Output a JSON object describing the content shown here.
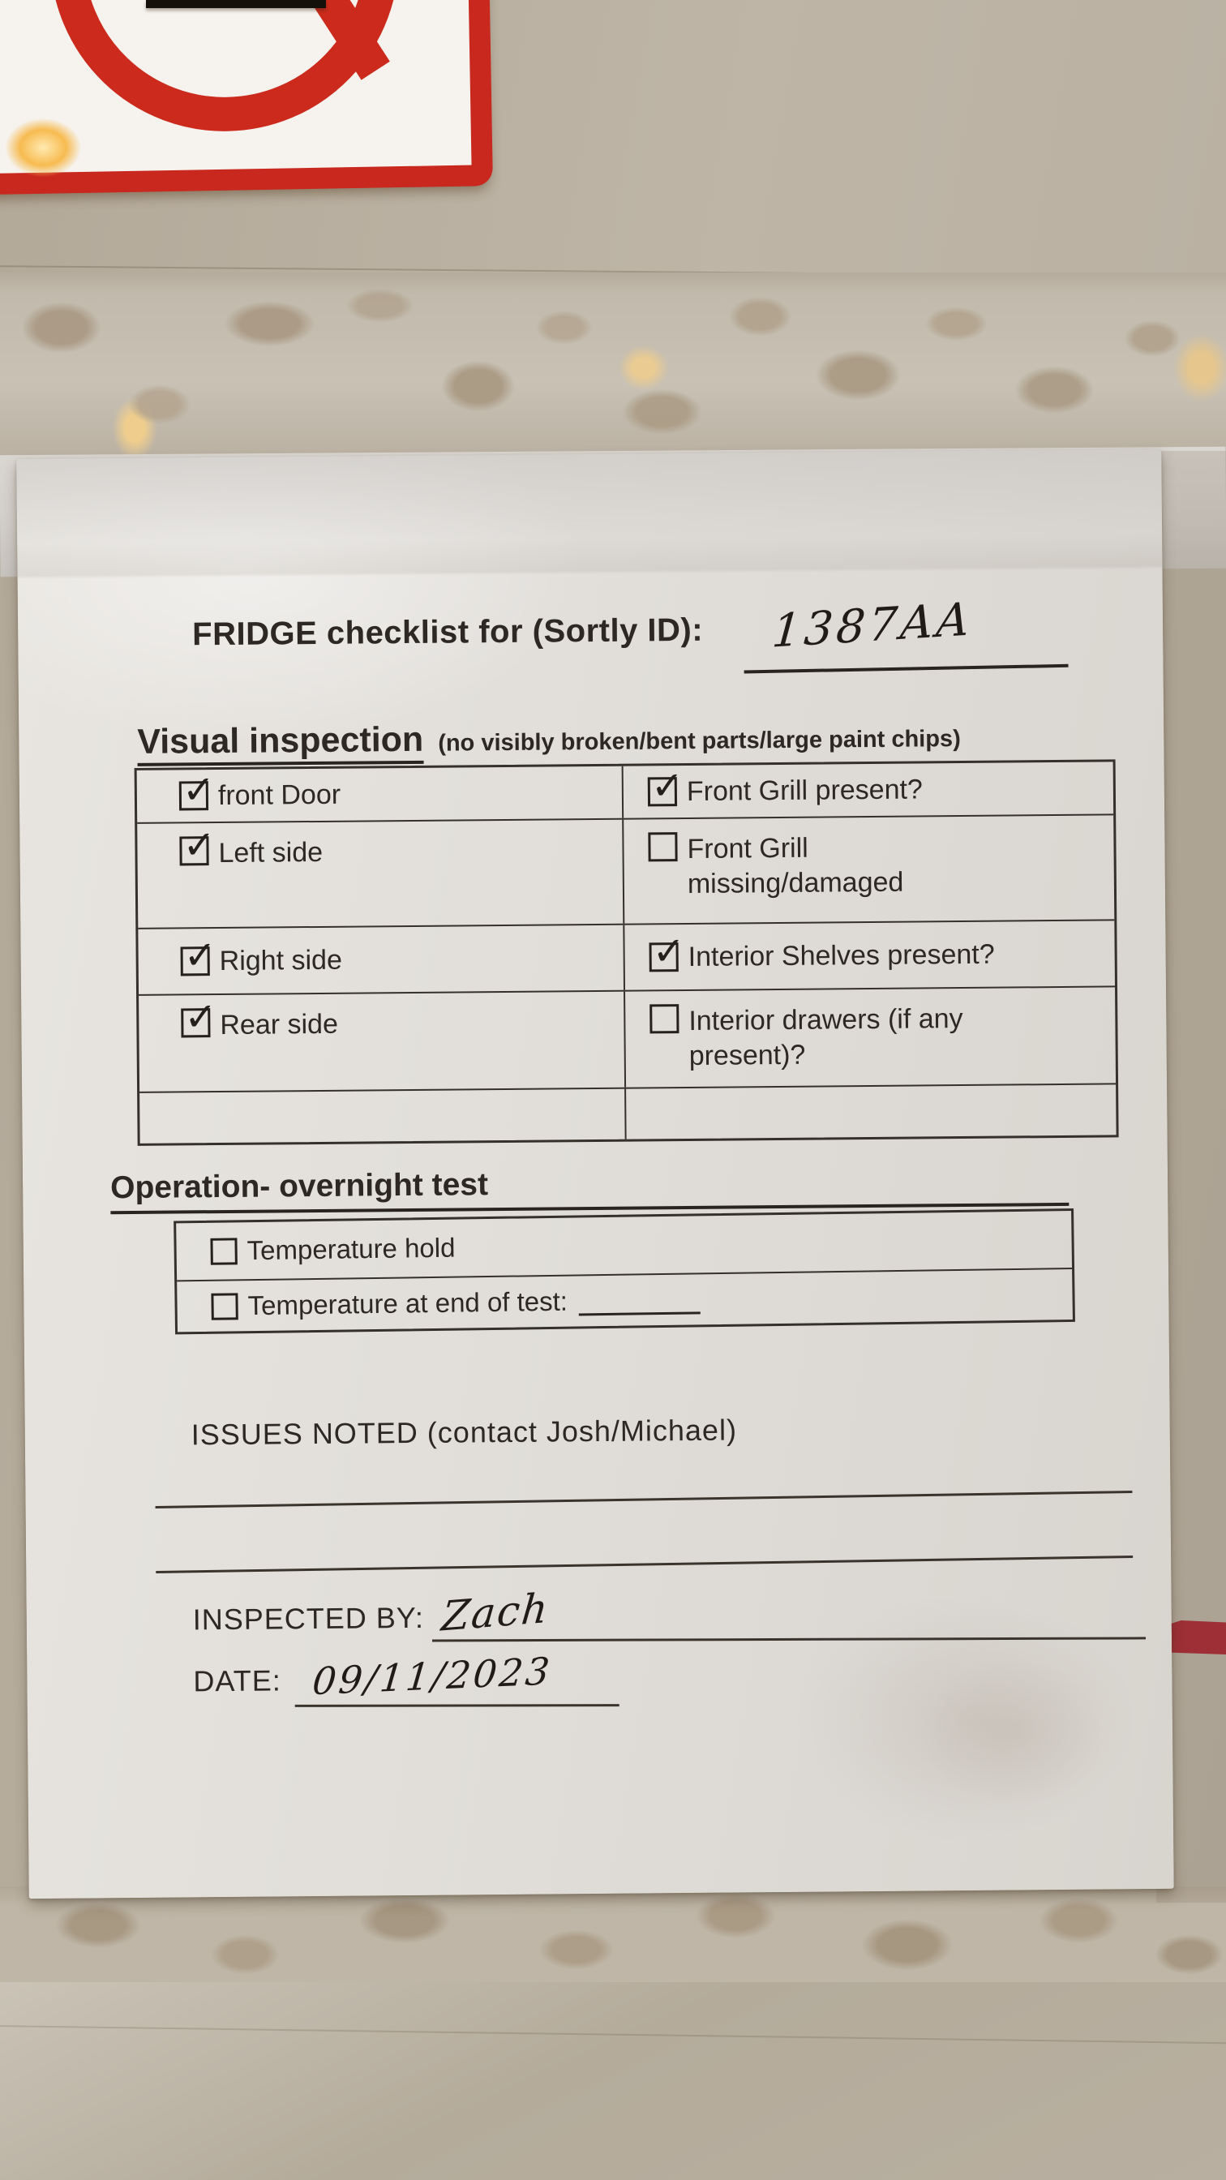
{
  "scene": {
    "description": "Photo of a paper fridge checklist taped to an appliance door",
    "colors": {
      "wall_beige": "#b8afa0",
      "paper": "#e2dfda",
      "ink": "#2d2823",
      "sign_red": "#c9281e",
      "red_patch": "#9e2f36",
      "glare_gold": "#f7bb50"
    }
  },
  "sign": {
    "icon": "prohibition-sign-icon"
  },
  "checklist": {
    "title_label": "FRIDGE checklist for (Sortly ID):",
    "sortly_id": "1387AA",
    "visual": {
      "heading": "Visual inspection",
      "subheading": "(no visibly broken/bent parts/large paint chips)",
      "rows": [
        {
          "left": {
            "label": "front Door",
            "checked": true
          },
          "right": {
            "label": "Front Grill present?",
            "checked": true
          }
        },
        {
          "left": {
            "label": "Left side",
            "checked": true
          },
          "right": {
            "label": "Front Grill missing/damaged",
            "checked": false
          }
        },
        {
          "left": {
            "label": "Right side",
            "checked": true
          },
          "right": {
            "label": "Interior Shelves present?",
            "checked": true
          }
        },
        {
          "left": {
            "label": "Rear side",
            "checked": true
          },
          "right": {
            "label": "Interior drawers (if any present)?",
            "checked": false
          }
        },
        {
          "left": {
            "label": "",
            "checked": false
          },
          "right": {
            "label": "",
            "checked": false
          }
        }
      ]
    },
    "operation": {
      "heading": "Operation- overnight test",
      "rows": [
        {
          "label": "Temperature hold",
          "checked": false,
          "value": ""
        },
        {
          "label": "Temperature at end of test:",
          "checked": false,
          "value": ""
        }
      ]
    },
    "issues_label": "ISSUES NOTED (contact Josh/Michael)",
    "issues_lines": [
      "",
      ""
    ],
    "inspected_by_label": "INSPECTED BY:",
    "inspected_by_value": "Zach",
    "date_label": "DATE:",
    "date_value": "09/11/2023"
  }
}
